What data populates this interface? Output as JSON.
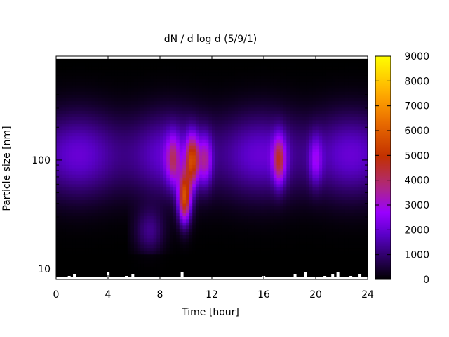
{
  "chart_data": {
    "type": "heatmap",
    "title": "dN / d log d (5/9/1)",
    "xlabel": "Time [hour]",
    "ylabel": "Particle size [nm]",
    "x_range": [
      0,
      24
    ],
    "x_ticks": [
      0,
      4,
      8,
      12,
      16,
      20,
      24
    ],
    "y_scale": "log",
    "y_range": [
      8,
      900
    ],
    "y_ticks": [
      10,
      100
    ],
    "colorbar": {
      "range": [
        0,
        9000
      ],
      "ticks": [
        0,
        1000,
        2000,
        3000,
        4000,
        5000,
        6000,
        7000,
        8000,
        9000
      ],
      "colormap": "black-purple-red-orange-yellow",
      "colors": [
        "#000000",
        "#5a00c8",
        "#9a00ff",
        "#b02a7a",
        "#c23000",
        "#e86b00",
        "#ffa500",
        "#ffff00"
      ]
    },
    "grid": false,
    "legend": "colorbar-right",
    "features": [
      {
        "time_hour": 9.9,
        "size_nm": 45,
        "peak_value": 7000
      },
      {
        "time_hour": 10.5,
        "size_nm": 100,
        "peak_value": 6000
      },
      {
        "time_hour": 17.2,
        "size_nm": 100,
        "peak_value": 5000
      },
      {
        "time_hour": 11.5,
        "size_nm": 100,
        "peak_value": 4300
      },
      {
        "time_hour": 9.0,
        "size_nm": 100,
        "peak_value": 4200
      },
      {
        "time_hour": 20.0,
        "size_nm": 100,
        "peak_value": 3600
      }
    ]
  }
}
